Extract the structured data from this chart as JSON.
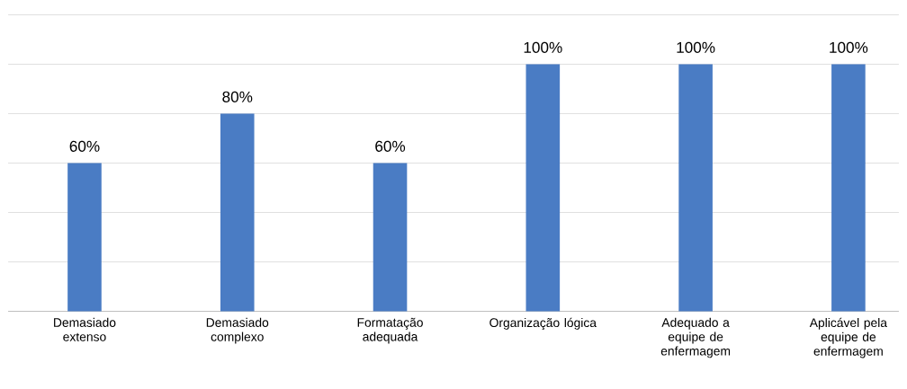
{
  "chart_data": {
    "type": "bar",
    "categories": [
      "Demasiado extenso",
      "Demasiado complexo",
      "Formatação adequada",
      "Organização lógica",
      "Adequado a equipe de enfermagem",
      "Aplicável pela equipe de enfermagem"
    ],
    "values": [
      60,
      80,
      60,
      100,
      100,
      100
    ],
    "value_labels": [
      "60%",
      "80%",
      "60%",
      "100%",
      "100%",
      "100%"
    ],
    "color": "#4a7cc4",
    "ylim": [
      0,
      120
    ],
    "yticks": [
      {
        "value": 0,
        "label": null
      },
      {
        "value": 20,
        "label": null
      },
      {
        "value": 40,
        "label": null
      },
      {
        "value": 60,
        "label": null
      },
      {
        "value": 80,
        "label": null
      },
      {
        "value": 100,
        "label": null
      },
      {
        "value": 120,
        "label": null
      }
    ],
    "grid": "y",
    "tick_labels": "x"
  }
}
